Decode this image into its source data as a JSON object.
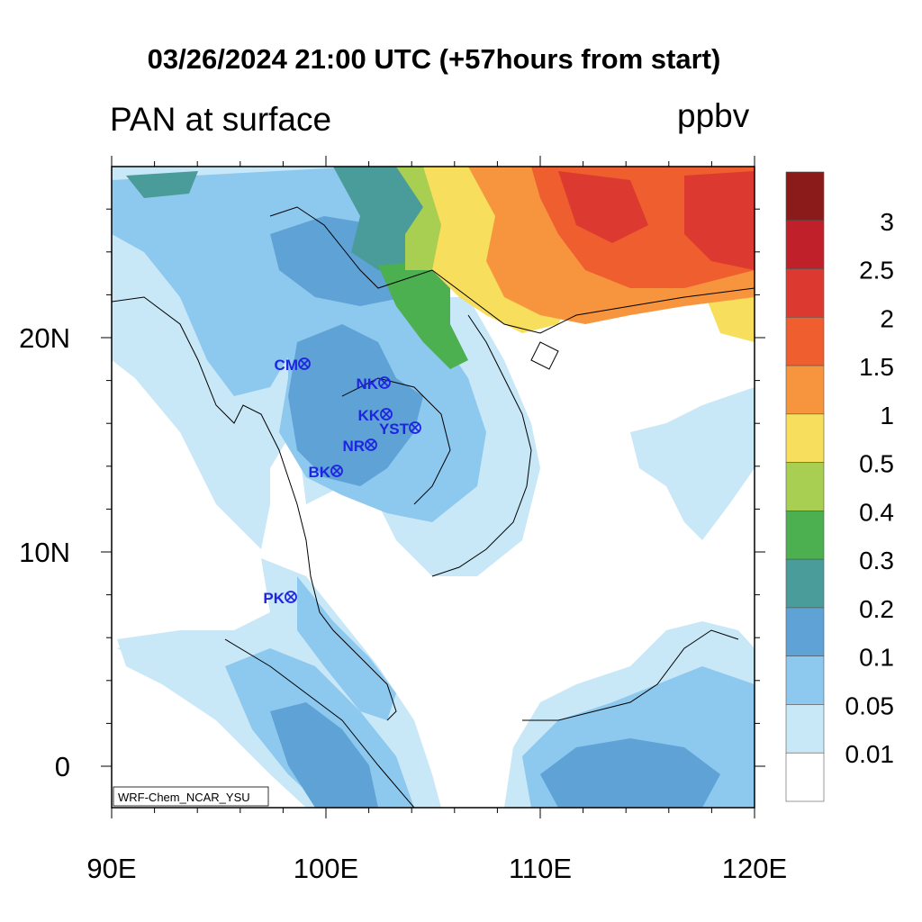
{
  "title": "03/26/2024 21:00 UTC (+57hours from start)",
  "left_string": "PAN at surface",
  "right_string": "ppbv",
  "credit": "WRF-Chem_NCAR_YSU",
  "lon_labels": [
    "90E",
    "100E",
    "110E",
    "120E"
  ],
  "lat_labels": [
    "20N",
    "10N",
    "0"
  ],
  "colorbar": {
    "labels": [
      "3",
      "2.5",
      "2",
      "1.5",
      "1",
      "0.5",
      "0.4",
      "0.3",
      "0.2",
      "0.1",
      "0.05",
      "0.01"
    ],
    "colors": [
      "#8b1a1a",
      "#c0202a",
      "#dc3a30",
      "#ef5e2e",
      "#f7953f",
      "#f7de5c",
      "#a8cf52",
      "#4caf50",
      "#4a9c9a",
      "#5ea2d6",
      "#8dc8ee",
      "#c8e7f7",
      "#ffffff"
    ]
  },
  "stations": [
    {
      "name": "CM"
    },
    {
      "name": "NK"
    },
    {
      "name": "KK"
    },
    {
      "name": "YST"
    },
    {
      "name": "NR"
    },
    {
      "name": "BK"
    },
    {
      "name": "PK"
    }
  ],
  "station_color": "#1f24e0"
}
